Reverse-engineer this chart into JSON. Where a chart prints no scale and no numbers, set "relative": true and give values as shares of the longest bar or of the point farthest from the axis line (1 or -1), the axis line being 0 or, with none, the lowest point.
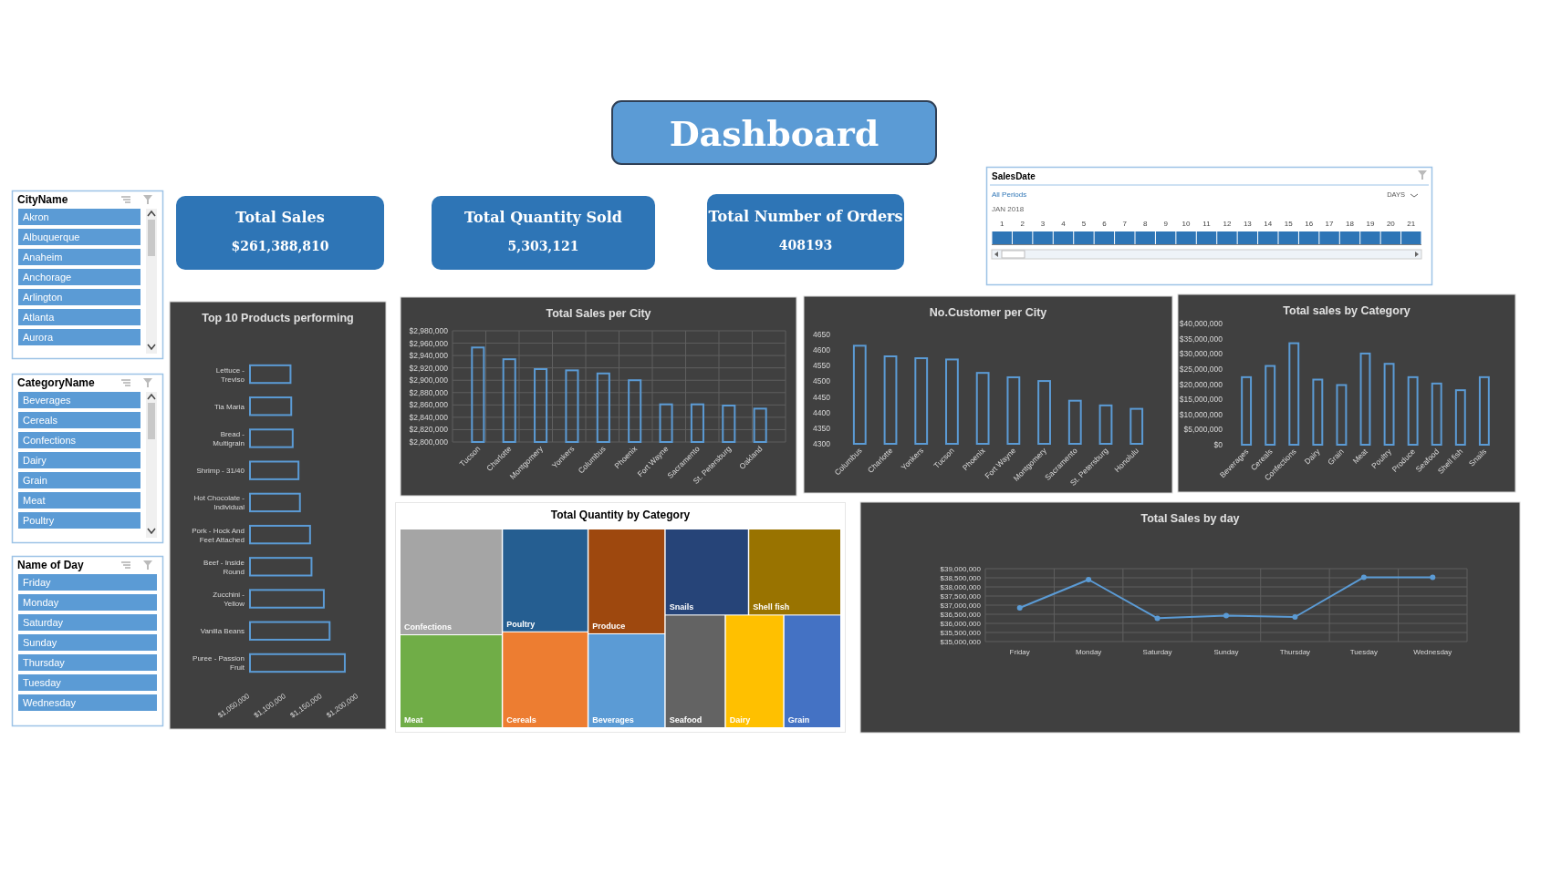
{
  "chart_data": [
    {
      "type": "other",
      "title": "Dashboard"
    },
    {
      "type": "other",
      "title": "CityName",
      "categories": [
        "Akron",
        "Albuquerque",
        "Anaheim",
        "Anchorage",
        "Arlington",
        "Atlanta",
        "Aurora"
      ]
    },
    {
      "type": "other",
      "title": "Total Sales",
      "annotations": [
        "$261,388,810"
      ]
    },
    {
      "type": "other",
      "title": "Total Quantity  Sold",
      "annotations": [
        "5,303,121"
      ]
    },
    {
      "type": "other",
      "title": "Total Number of Orders",
      "annotations": [
        "408193"
      ]
    },
    {
      "type": "bar",
      "title": "SalesDate",
      "annotations": [
        "All Periods",
        "DAYS",
        "JAN 2018"
      ],
      "relative": true,
      "color": "#2e75b6",
      "x": [
        1,
        2,
        3,
        4,
        5,
        6,
        7,
        8,
        9,
        10,
        11,
        12,
        13,
        14,
        15,
        16,
        17,
        18,
        19,
        20,
        21
      ],
      "values": [
        1,
        1,
        1,
        1,
        1,
        1,
        1,
        1,
        1,
        1,
        1,
        1,
        1,
        1,
        1,
        1,
        1,
        1,
        1,
        1,
        1
      ],
      "xlim": [
        0.5,
        21.5
      ],
      "xticks": [
        1,
        2,
        3,
        4,
        5,
        6,
        7,
        8,
        9,
        10,
        11,
        12,
        13,
        14,
        15,
        16,
        17,
        18,
        19,
        20,
        21
      ]
    },
    {
      "type": "bar",
      "orientation": "horizontal",
      "title": "Top 10 Products performing",
      "categories": [
        "Lettuce - Treviso",
        "Tia Maria",
        "Bread - Multigrain",
        "Shrimp - 31/40",
        "Hot Chocolate - Individual",
        "Pork - Hock And Feet Attached",
        "Beef - Inside Round",
        "Zucchini - Yellow",
        "Vanilla Beans",
        "Puree - Passion Fruit"
      ],
      "values": [
        1106000,
        1107000,
        1109000,
        1117000,
        1119000,
        1133000,
        1135000,
        1152000,
        1160000,
        1181000
      ],
      "color": "#5b9bd5",
      "xlim": [
        1050000,
        1200000
      ],
      "xticks": [
        {
          "value": 1050000,
          "label": "$1,050,000"
        },
        {
          "value": 1100000,
          "label": "$1,100,000"
        },
        {
          "value": 1150000,
          "label": "$1,150,000"
        },
        {
          "value": 1200000,
          "label": "$1,200,000"
        }
      ]
    },
    {
      "type": "bar",
      "title": "Total Sales per City",
      "categories": [
        "Tucson",
        "Charlotte",
        "Montgomery",
        "Yonkers",
        "Columbus",
        "Phoenix",
        "Fort Wayne",
        "Sacramento",
        "St. Petersburg",
        "Oakland"
      ],
      "values": [
        2953000,
        2934000,
        2918000,
        2916000,
        2911000,
        2900000,
        2861000,
        2861000,
        2859000,
        2854000
      ],
      "color": "#5b9bd5",
      "ylim": [
        2800000,
        2980000
      ],
      "yticks": [
        {
          "value": 2800000,
          "label": "$2,800,000"
        },
        {
          "value": 2820000,
          "label": "$2,820,000"
        },
        {
          "value": 2840000,
          "label": "$2,840,000"
        },
        {
          "value": 2860000,
          "label": "$2,860,000"
        },
        {
          "value": 2880000,
          "label": "$2,880,000"
        },
        {
          "value": 2900000,
          "label": "$2,900,000"
        },
        {
          "value": 2920000,
          "label": "$2,920,000"
        },
        {
          "value": 2940000,
          "label": "$2,940,000"
        },
        {
          "value": 2960000,
          "label": "$2,960,000"
        },
        {
          "value": 2980000,
          "label": "$2,980,000"
        }
      ],
      "grid": true
    },
    {
      "type": "bar",
      "title": "No.Customer per City",
      "categories": [
        "Columbus",
        "Charlotte",
        "Yonkers",
        "Tucson",
        "Phoenix",
        "Fort Wayne",
        "Montgomery",
        "Sacramento",
        "St. Petersburg",
        "Honolulu"
      ],
      "values": [
        4614,
        4580,
        4574,
        4570,
        4527,
        4513,
        4501,
        4438,
        4423,
        4412
      ],
      "color": "#5b9bd5",
      "ylim": [
        4300,
        4650
      ],
      "yticks": [
        4300,
        4350,
        4400,
        4450,
        4500,
        4550,
        4600,
        4650
      ]
    },
    {
      "type": "bar",
      "title": "Total sales by Category",
      "categories": [
        "Beverages",
        "Cereals",
        "Confections",
        "Dairy",
        "Grain",
        "Meat",
        "Poultry",
        "Produce",
        "Seafood",
        "Shell fish",
        "Snails"
      ],
      "values": [
        22300000,
        26000000,
        33500000,
        21500000,
        19700000,
        30100000,
        26700000,
        22300000,
        20200000,
        18000000,
        22300000
      ],
      "color": "#5b9bd5",
      "ylim": [
        0,
        40000000
      ],
      "yticks": [
        {
          "value": 0,
          "label": "$0"
        },
        {
          "value": 5000000,
          "label": "$5,000,000"
        },
        {
          "value": 10000000,
          "label": "$10,000,000"
        },
        {
          "value": 15000000,
          "label": "$15,000,000"
        },
        {
          "value": 20000000,
          "label": "$20,000,000"
        },
        {
          "value": 25000000,
          "label": "$25,000,000"
        },
        {
          "value": 30000000,
          "label": "$30,000,000"
        },
        {
          "value": 35000000,
          "label": "$35,000,000"
        },
        {
          "value": 40000000,
          "label": "$40,000,000"
        }
      ]
    },
    {
      "type": "other",
      "title": "CategoryName",
      "categories": [
        "Beverages",
        "Cereals",
        "Confections",
        "Dairy",
        "Grain",
        "Meat",
        "Poultry"
      ]
    },
    {
      "type": "other",
      "title": "Total Quantity by Category",
      "categories": [
        "Confections",
        "Meat",
        "Poultry",
        "Cereals",
        "Produce",
        "Beverages",
        "Snails",
        "Shell fish",
        "Seafood",
        "Dairy",
        "Grain"
      ],
      "colors": [
        "#a5a5a5",
        "#70ad47",
        "#255e91",
        "#ed7d31",
        "#9e480e",
        "#5b9bd5",
        "#264478",
        "#997300",
        "#636363",
        "#ffc000",
        "#4472c4"
      ]
    },
    {
      "type": "line",
      "title": "Total Sales by day",
      "categories": [
        "Friday",
        "Monday",
        "Saturday",
        "Sunday",
        "Thursday",
        "Tuesday",
        "Wednesday"
      ],
      "values": [
        36850000,
        38400000,
        36280000,
        36420000,
        36350000,
        38530000,
        38530000
      ],
      "color": "#5b9bd5",
      "marker": "circle",
      "grid": true,
      "ylim": [
        35000000,
        39000000
      ],
      "yticks": [
        {
          "value": 35000000,
          "label": "$35,000,000"
        },
        {
          "value": 35500000,
          "label": "$35,500,000"
        },
        {
          "value": 36000000,
          "label": "$36,000,000"
        },
        {
          "value": 36500000,
          "label": "$36,500,000"
        },
        {
          "value": 37000000,
          "label": "$37,000,000"
        },
        {
          "value": 37500000,
          "label": "$37,500,000"
        },
        {
          "value": 38000000,
          "label": "$38,000,000"
        },
        {
          "value": 38500000,
          "label": "$38,500,000"
        },
        {
          "value": 39000000,
          "label": "$39,000,000"
        }
      ]
    },
    {
      "type": "other",
      "title": "Name of Day",
      "categories": [
        "Friday",
        "Monday",
        "Saturday",
        "Sunday",
        "Thursday",
        "Tuesday",
        "Wednesday"
      ]
    }
  ]
}
